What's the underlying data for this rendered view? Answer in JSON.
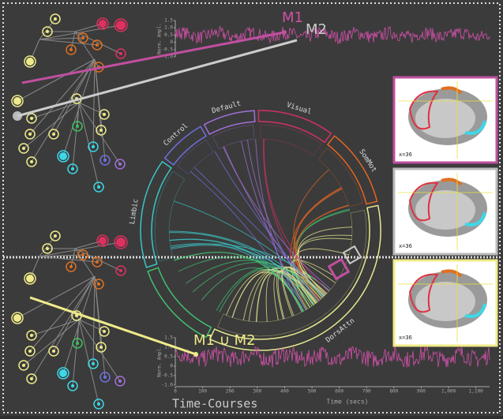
{
  "top_plot": {
    "y_label": "Norm. Ampl.",
    "ylim": [
      -1,
      1.5
    ],
    "yticks": [
      1.5,
      {
        "value": 1,
        "label": "1.0"
      },
      0.5,
      0,
      -0.5,
      {
        "value": -1,
        "label": "-1.0"
      }
    ]
  },
  "bottom_plot": {
    "y_label": "Norm. Ampl.",
    "x_label": "Time (secs)",
    "xlim": [
      0,
      1150
    ],
    "ylim": [
      -1,
      1.5
    ],
    "xticks": [
      0,
      100,
      200,
      300,
      400,
      500,
      600,
      700,
      800,
      900,
      {
        "value": 1000,
        "label": "1,000"
      },
      {
        "value": 1100,
        "label": "1,100"
      }
    ],
    "yticks": [
      1.5,
      {
        "value": 1,
        "label": "1.0"
      },
      0.5,
      0,
      -0.5,
      {
        "value": -1,
        "label": "-1.0"
      }
    ]
  },
  "labels": {
    "m1": "M1",
    "m2": "M2",
    "union": "M1 ∪ M2",
    "footer": "Time-Courses"
  },
  "networks": [
    {
      "name": "Control",
      "color": "#6f6fe0"
    },
    {
      "name": "Default",
      "color": "#a070d8"
    },
    {
      "name": "Visual",
      "color": "#d0306a"
    },
    {
      "name": "SomMot",
      "color": "#e06424"
    },
    {
      "name": "DorsAttn",
      "color": "#e8e890"
    },
    {
      "name": "Limbic",
      "color": "#3cc4c4"
    }
  ],
  "brains": [
    "x=36",
    "x=36",
    "x=36"
  ]
}
